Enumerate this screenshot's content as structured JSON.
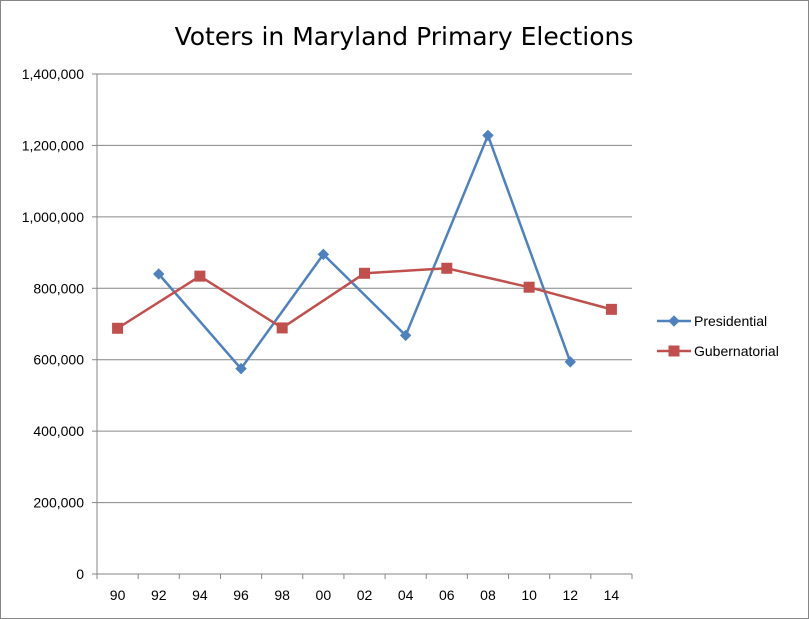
{
  "chart_data": {
    "type": "line",
    "title": "Voters in Maryland Primary Elections",
    "xlabel": "",
    "ylabel": "",
    "categories": [
      "90",
      "92",
      "94",
      "96",
      "98",
      "00",
      "02",
      "04",
      "06",
      "08",
      "10",
      "12",
      "14"
    ],
    "ylim": [
      0,
      1400000
    ],
    "yticks": [
      "0",
      "200,000",
      "400,000",
      "600,000",
      "800,000",
      "1,000,000",
      "1,200,000",
      "1,400,000"
    ],
    "ytick_values": [
      0,
      200000,
      400000,
      600000,
      800000,
      1000000,
      1200000,
      1400000
    ],
    "grid": "horizontal",
    "legend": "right",
    "series": [
      {
        "name": "Presidential",
        "color": "#4F81BD",
        "marker": "diamond",
        "values": [
          null,
          840000,
          null,
          575000,
          null,
          895000,
          null,
          668000,
          null,
          1228000,
          null,
          594000,
          null
        ]
      },
      {
        "name": "Gubernatorial",
        "color": "#C0504D",
        "marker": "square",
        "values": [
          688000,
          null,
          834000,
          null,
          689000,
          null,
          842000,
          null,
          856000,
          null,
          803000,
          null,
          741000
        ]
      }
    ]
  }
}
